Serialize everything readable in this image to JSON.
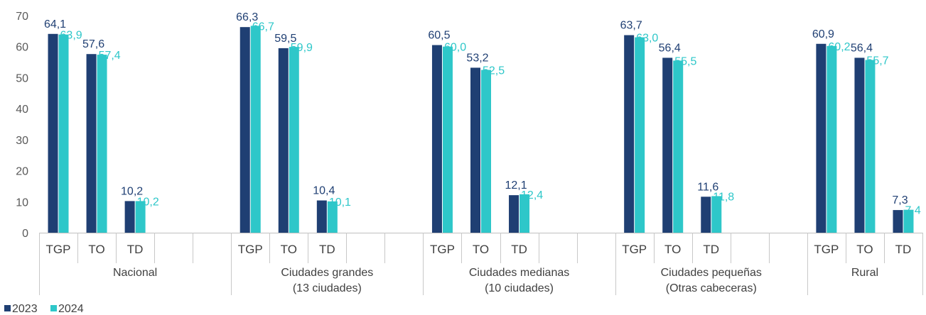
{
  "chart_data": {
    "type": "bar",
    "title": "",
    "xlabel": "",
    "ylabel": "",
    "ylim": [
      0,
      70
    ],
    "yticks": [
      0,
      10,
      20,
      30,
      40,
      50,
      60,
      70
    ],
    "grid": false,
    "legend_position": "bottom-left",
    "groups": [
      {
        "label_lines": [
          "Nacional"
        ],
        "categories": [
          "TGP",
          "TO",
          "TD"
        ]
      },
      {
        "label_lines": [
          "Ciudades grandes",
          "(13 ciudades)"
        ],
        "categories": [
          "TGP",
          "TO",
          "TD"
        ]
      },
      {
        "label_lines": [
          "Ciudades medianas",
          "(10 ciudades)"
        ],
        "categories": [
          "TGP",
          "TO",
          "TD"
        ]
      },
      {
        "label_lines": [
          "Ciudades pequeñas",
          "(Otras cabeceras)"
        ],
        "categories": [
          "TGP",
          "TO",
          "TD"
        ]
      },
      {
        "label_lines": [
          "Rural"
        ],
        "categories": [
          "TGP",
          "TO",
          "TD"
        ]
      }
    ],
    "series": [
      {
        "name": "2023",
        "color": "#1f3f73",
        "values": [
          [
            64.1,
            57.6,
            10.2
          ],
          [
            66.3,
            59.5,
            10.4
          ],
          [
            60.5,
            53.2,
            12.1
          ],
          [
            63.7,
            56.4,
            11.6
          ],
          [
            60.9,
            56.4,
            7.3
          ]
        ],
        "labels": [
          [
            "64,1",
            "57,6",
            "10,2"
          ],
          [
            "66,3",
            "59,5",
            "10,4"
          ],
          [
            "60,5",
            "53,2",
            "12,1"
          ],
          [
            "63,7",
            "56,4",
            "11,6"
          ],
          [
            "60,9",
            "56,4",
            "7,3"
          ]
        ]
      },
      {
        "name": "2024",
        "color": "#2ec7c9",
        "values": [
          [
            63.9,
            57.4,
            10.2
          ],
          [
            66.7,
            59.9,
            10.1
          ],
          [
            60.0,
            52.5,
            12.4
          ],
          [
            63.0,
            55.5,
            11.8
          ],
          [
            60.2,
            55.7,
            7.4
          ]
        ],
        "labels": [
          [
            "63,9",
            "57,4",
            "10,2"
          ],
          [
            "66,7",
            "59,9",
            "10,1"
          ],
          [
            "60,0",
            "52,5",
            "12,4"
          ],
          [
            "63,0",
            "55,5",
            "11,8"
          ],
          [
            "60,2",
            "55,7",
            "7,4"
          ]
        ]
      }
    ]
  }
}
